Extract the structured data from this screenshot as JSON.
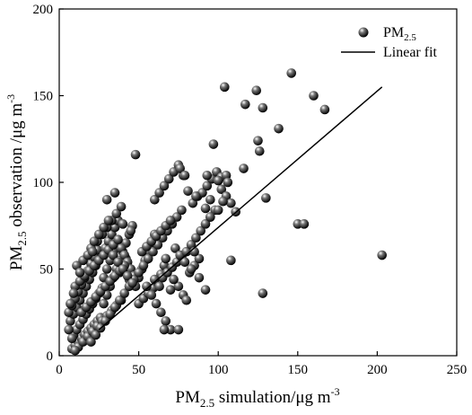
{
  "chart_data": {
    "type": "scatter",
    "xlabel": {
      "main": "PM",
      "sub": "2.5",
      "rest": " simulation/μg m",
      "sup": "-3"
    },
    "ylabel": {
      "main": "PM",
      "sub": "2.5",
      "rest": " observation /μg m",
      "sup": "-3"
    },
    "xlim": [
      0,
      250
    ],
    "ylim": [
      0,
      200
    ],
    "xticks": [
      0,
      50,
      100,
      150,
      200,
      250
    ],
    "yticks": [
      0,
      50,
      100,
      150,
      200
    ],
    "grid": false,
    "legend": {
      "placement": "top-right",
      "items": [
        {
          "marker": "sphere",
          "main": "PM",
          "sub": "2.5"
        },
        {
          "marker": "line",
          "main": "Linear fit",
          "sub": ""
        }
      ]
    },
    "series": [
      {
        "name": "PM2.5",
        "points": [
          [
            8,
            4
          ],
          [
            10,
            6
          ],
          [
            12,
            8
          ],
          [
            14,
            10
          ],
          [
            16,
            12
          ],
          [
            18,
            14
          ],
          [
            20,
            16
          ],
          [
            22,
            18
          ],
          [
            24,
            20
          ],
          [
            26,
            22
          ],
          [
            9,
            12
          ],
          [
            11,
            15
          ],
          [
            13,
            18
          ],
          [
            15,
            21
          ],
          [
            17,
            24
          ],
          [
            19,
            27
          ],
          [
            21,
            30
          ],
          [
            23,
            33
          ],
          [
            25,
            36
          ],
          [
            27,
            39
          ],
          [
            7,
            20
          ],
          [
            9,
            24
          ],
          [
            11,
            28
          ],
          [
            13,
            32
          ],
          [
            15,
            36
          ],
          [
            17,
            40
          ],
          [
            19,
            44
          ],
          [
            21,
            48
          ],
          [
            23,
            52
          ],
          [
            25,
            56
          ],
          [
            6,
            25
          ],
          [
            8,
            29
          ],
          [
            10,
            33
          ],
          [
            12,
            37
          ],
          [
            14,
            41
          ],
          [
            16,
            45
          ],
          [
            18,
            49
          ],
          [
            20,
            53
          ],
          [
            22,
            57
          ],
          [
            24,
            61
          ],
          [
            28,
            30
          ],
          [
            30,
            35
          ],
          [
            32,
            40
          ],
          [
            34,
            45
          ],
          [
            36,
            50
          ],
          [
            38,
            55
          ],
          [
            40,
            60
          ],
          [
            42,
            65
          ],
          [
            44,
            70
          ],
          [
            46,
            75
          ],
          [
            28,
            45
          ],
          [
            30,
            50
          ],
          [
            32,
            55
          ],
          [
            34,
            60
          ],
          [
            36,
            65
          ],
          [
            38,
            48
          ],
          [
            40,
            52
          ],
          [
            42,
            56
          ],
          [
            44,
            44
          ],
          [
            46,
            48
          ],
          [
            29,
            62
          ],
          [
            31,
            66
          ],
          [
            33,
            70
          ],
          [
            35,
            74
          ],
          [
            37,
            78
          ],
          [
            39,
            62
          ],
          [
            41,
            58
          ],
          [
            43,
            54
          ],
          [
            45,
            50
          ],
          [
            47,
            46
          ],
          [
            48,
            40
          ],
          [
            50,
            45
          ],
          [
            52,
            50
          ],
          [
            54,
            55
          ],
          [
            56,
            60
          ],
          [
            58,
            65
          ],
          [
            60,
            70
          ],
          [
            62,
            42
          ],
          [
            64,
            47
          ],
          [
            66,
            52
          ],
          [
            12,
            5
          ],
          [
            15,
            8
          ],
          [
            18,
            11
          ],
          [
            21,
            14
          ],
          [
            24,
            17
          ],
          [
            27,
            20
          ],
          [
            30,
            23
          ],
          [
            33,
            26
          ],
          [
            36,
            29
          ],
          [
            39,
            32
          ],
          [
            14,
            25
          ],
          [
            17,
            28
          ],
          [
            20,
            31
          ],
          [
            23,
            34
          ],
          [
            26,
            37
          ],
          [
            29,
            40
          ],
          [
            32,
            43
          ],
          [
            35,
            46
          ],
          [
            38,
            49
          ],
          [
            41,
            52
          ],
          [
            10,
            40
          ],
          [
            13,
            43
          ],
          [
            16,
            46
          ],
          [
            19,
            49
          ],
          [
            22,
            52
          ],
          [
            25,
            55
          ],
          [
            28,
            58
          ],
          [
            31,
            61
          ],
          [
            34,
            64
          ],
          [
            37,
            67
          ],
          [
            20,
            8
          ],
          [
            23,
            12
          ],
          [
            26,
            16
          ],
          [
            29,
            20
          ],
          [
            32,
            24
          ],
          [
            35,
            28
          ],
          [
            38,
            32
          ],
          [
            41,
            36
          ],
          [
            44,
            40
          ],
          [
            47,
            44
          ],
          [
            50,
            48
          ],
          [
            53,
            52
          ],
          [
            56,
            56
          ],
          [
            59,
            60
          ],
          [
            62,
            64
          ],
          [
            65,
            68
          ],
          [
            68,
            72
          ],
          [
            71,
            76
          ],
          [
            74,
            80
          ],
          [
            77,
            84
          ],
          [
            50,
            30
          ],
          [
            53,
            33
          ],
          [
            56,
            36
          ],
          [
            59,
            39
          ],
          [
            62,
            42
          ],
          [
            65,
            45
          ],
          [
            68,
            48
          ],
          [
            71,
            51
          ],
          [
            74,
            54
          ],
          [
            77,
            57
          ],
          [
            52,
            60
          ],
          [
            55,
            63
          ],
          [
            58,
            66
          ],
          [
            61,
            69
          ],
          [
            64,
            72
          ],
          [
            67,
            75
          ],
          [
            70,
            78
          ],
          [
            73,
            62
          ],
          [
            76,
            58
          ],
          [
            79,
            54
          ],
          [
            80,
            60
          ],
          [
            83,
            64
          ],
          [
            86,
            68
          ],
          [
            89,
            72
          ],
          [
            92,
            76
          ],
          [
            95,
            80
          ],
          [
            98,
            84
          ],
          [
            82,
            48
          ],
          [
            85,
            52
          ],
          [
            88,
            56
          ],
          [
            60,
            90
          ],
          [
            63,
            94
          ],
          [
            66,
            98
          ],
          [
            69,
            102
          ],
          [
            72,
            106
          ],
          [
            75,
            110
          ],
          [
            78,
            104
          ],
          [
            81,
            95
          ],
          [
            84,
            88
          ],
          [
            87,
            92
          ],
          [
            90,
            94
          ],
          [
            93,
            98
          ],
          [
            96,
            102
          ],
          [
            99,
            106
          ],
          [
            102,
            96
          ],
          [
            105,
            92
          ],
          [
            108,
            88
          ],
          [
            100,
            84
          ],
          [
            95,
            90
          ],
          [
            92,
            85
          ],
          [
            24,
            66
          ],
          [
            27,
            70
          ],
          [
            30,
            74
          ],
          [
            33,
            78
          ],
          [
            36,
            82
          ],
          [
            39,
            86
          ],
          [
            30,
            90
          ],
          [
            35,
            94
          ],
          [
            40,
            76
          ],
          [
            45,
            72
          ],
          [
            20,
            62
          ],
          [
            22,
            66
          ],
          [
            25,
            70
          ],
          [
            28,
            74
          ],
          [
            31,
            78
          ],
          [
            34,
            58
          ],
          [
            37,
            54
          ],
          [
            40,
            50
          ],
          [
            43,
            46
          ],
          [
            46,
            42
          ],
          [
            15,
            55
          ],
          [
            18,
            58
          ],
          [
            21,
            60
          ],
          [
            11,
            52
          ],
          [
            13,
            48
          ],
          [
            9,
            36
          ],
          [
            7,
            30
          ],
          [
            6,
            15
          ],
          [
            8,
            10
          ],
          [
            10,
            3
          ],
          [
            55,
            40
          ],
          [
            58,
            35
          ],
          [
            61,
            30
          ],
          [
            64,
            25
          ],
          [
            67,
            20
          ],
          [
            70,
            15
          ],
          [
            75,
            15
          ],
          [
            78,
            35
          ],
          [
            66,
            15
          ],
          [
            48,
            116
          ],
          [
            104,
            155
          ],
          [
            124,
            153
          ],
          [
            117,
            145
          ],
          [
            128,
            143
          ],
          [
            125,
            124
          ],
          [
            126,
            118
          ],
          [
            138,
            131
          ],
          [
            146,
            163
          ],
          [
            160,
            150
          ],
          [
            167,
            142
          ],
          [
            97,
            122
          ],
          [
            116,
            108
          ],
          [
            130,
            91
          ],
          [
            102,
            103
          ],
          [
            100,
            101
          ],
          [
            105,
            104
          ],
          [
            106,
            100
          ],
          [
            103,
            89
          ],
          [
            111,
            83
          ],
          [
            95,
            80
          ],
          [
            108,
            55
          ],
          [
            128,
            36
          ],
          [
            150,
            76
          ],
          [
            154,
            76
          ],
          [
            203,
            58
          ],
          [
            86,
            92
          ],
          [
            93,
            104
          ],
          [
            76,
            108
          ],
          [
            79,
            104
          ],
          [
            85,
            60
          ],
          [
            75,
            40
          ],
          [
            80,
            32
          ],
          [
            88,
            45
          ],
          [
            92,
            38
          ],
          [
            70,
            38
          ],
          [
            72,
            44
          ],
          [
            83,
            50
          ],
          [
            60,
            44
          ],
          [
            63,
            40
          ],
          [
            67,
            56
          ]
        ]
      },
      {
        "name": "Linear fit",
        "x": [
          25,
          203
        ],
        "y": [
          15,
          155
        ]
      }
    ]
  }
}
